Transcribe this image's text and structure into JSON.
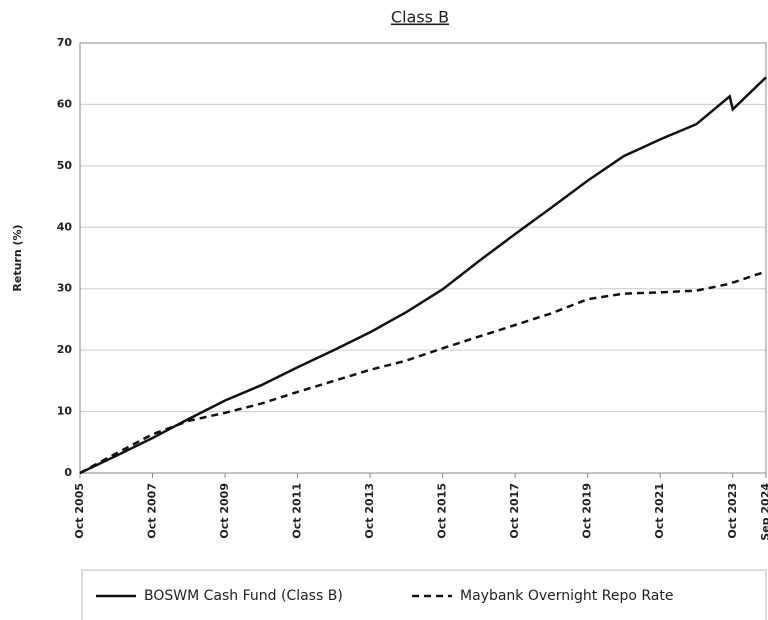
{
  "chart_data": {
    "type": "line",
    "title": "Class B",
    "y_label": "Return (%)",
    "x": [
      "Oct 2005",
      "Oct 2006",
      "Oct 2007",
      "Oct 2008",
      "Oct 2009",
      "Oct 2010",
      "Oct 2011",
      "Oct 2012",
      "Oct 2013",
      "Oct 2014",
      "Oct 2015",
      "Oct 2016",
      "Oct 2017",
      "Oct 2018",
      "Oct 2019",
      "Oct 2020",
      "Oct 2021",
      "Oct 2022",
      "Sep 2023",
      "Oct 2023",
      "Sep 2024"
    ],
    "xticks": [
      "Oct 2005",
      "Oct 2007",
      "Oct 2009",
      "Oct 2011",
      "Oct 2013",
      "Oct 2015",
      "Oct 2017",
      "Oct 2019",
      "Oct 2021",
      "Oct 2023",
      "Sep 2024"
    ],
    "series": [
      {
        "name": "BOSWM Cash Fund (Class B)",
        "color": "#111111",
        "dash": "solid",
        "values": [
          0,
          2.8,
          5.7,
          8.8,
          11.8,
          14.3,
          17.2,
          20,
          22.9,
          26.2,
          29.9,
          34.5,
          38.9,
          43.2,
          47.6,
          51.6,
          54.3,
          56.8,
          61.3,
          59.2,
          64.4
        ]
      },
      {
        "name": "Maybank Overnight Repo Rate",
        "color": "#111111",
        "dash": "dashed",
        "values": [
          0,
          3.2,
          6.3,
          8.5,
          9.8,
          11.3,
          13.2,
          15.0,
          16.8,
          18.3,
          20.3,
          22.2,
          24.1,
          26.0,
          28.3,
          29.2,
          29.4,
          29.7,
          30.8,
          31.0,
          32.8
        ]
      }
    ],
    "ylim": [
      0,
      70
    ],
    "yticks": [
      0,
      10,
      20,
      30,
      40,
      50,
      60,
      70
    ],
    "grid": true
  }
}
